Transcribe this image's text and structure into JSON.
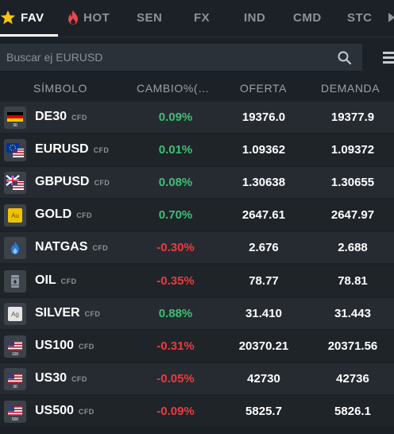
{
  "tabs": [
    {
      "label": "FAV",
      "icon": "star-icon",
      "active": true
    },
    {
      "label": "HOT",
      "icon": "fire-icon",
      "active": false
    },
    {
      "label": "SEN",
      "active": false
    },
    {
      "label": "FX",
      "active": false
    },
    {
      "label": "IND",
      "active": false
    },
    {
      "label": "CMD",
      "active": false
    },
    {
      "label": "STC",
      "active": false
    }
  ],
  "search": {
    "placeholder": "Buscar ej EURUSD"
  },
  "columns": {
    "symbol": "SÍMBOLO",
    "change": "CAMBIO%(…",
    "bid": "OFERTA",
    "ask": "DEMANDA"
  },
  "colors": {
    "positive": "#3fbf77",
    "negative": "#f0393f",
    "background": "#1c2127",
    "accent_star": "#f5c518"
  },
  "instruments": [
    {
      "symbol": "DE30",
      "badge": "CFD",
      "icon": "germany-flag-icon",
      "icon_sub": "30",
      "change": "0.09%",
      "direction": "up",
      "bid": "19376.0",
      "ask": "19377.9"
    },
    {
      "symbol": "EURUSD",
      "badge": "CFD",
      "icon": "eu-us-flag-icon",
      "change": "0.01%",
      "direction": "up",
      "bid": "1.09362",
      "ask": "1.09372"
    },
    {
      "symbol": "GBPUSD",
      "badge": "CFD",
      "icon": "uk-us-flag-icon",
      "change": "0.08%",
      "direction": "up",
      "bid": "1.30638",
      "ask": "1.30655"
    },
    {
      "symbol": "GOLD",
      "badge": "CFD",
      "icon": "gold-icon",
      "icon_text": "Au",
      "change": "0.70%",
      "direction": "up",
      "bid": "2647.61",
      "ask": "2647.97"
    },
    {
      "symbol": "NATGAS",
      "badge": "CFD",
      "icon": "gas-flame-icon",
      "change": "-0.30%",
      "direction": "down",
      "bid": "2.676",
      "ask": "2.688"
    },
    {
      "symbol": "OIL",
      "badge": "CFD",
      "icon": "oil-barrel-icon",
      "change": "-0.35%",
      "direction": "down",
      "bid": "78.77",
      "ask": "78.81"
    },
    {
      "symbol": "SILVER",
      "badge": "CFD",
      "icon": "silver-icon",
      "icon_text": "Ag",
      "change": "0.88%",
      "direction": "up",
      "bid": "31.410",
      "ask": "31.443"
    },
    {
      "symbol": "US100",
      "badge": "CFD",
      "icon": "us-flag-icon",
      "icon_sub": "100",
      "change": "-0.31%",
      "direction": "down",
      "bid": "20370.21",
      "ask": "20371.56"
    },
    {
      "symbol": "US30",
      "badge": "CFD",
      "icon": "us-flag-icon",
      "icon_sub": "30",
      "change": "-0.05%",
      "direction": "down",
      "bid": "42730",
      "ask": "42736"
    },
    {
      "symbol": "US500",
      "badge": "CFD",
      "icon": "us-flag-icon",
      "icon_sub": "500",
      "change": "-0.09%",
      "direction": "down",
      "bid": "5825.7",
      "ask": "5826.1"
    }
  ]
}
